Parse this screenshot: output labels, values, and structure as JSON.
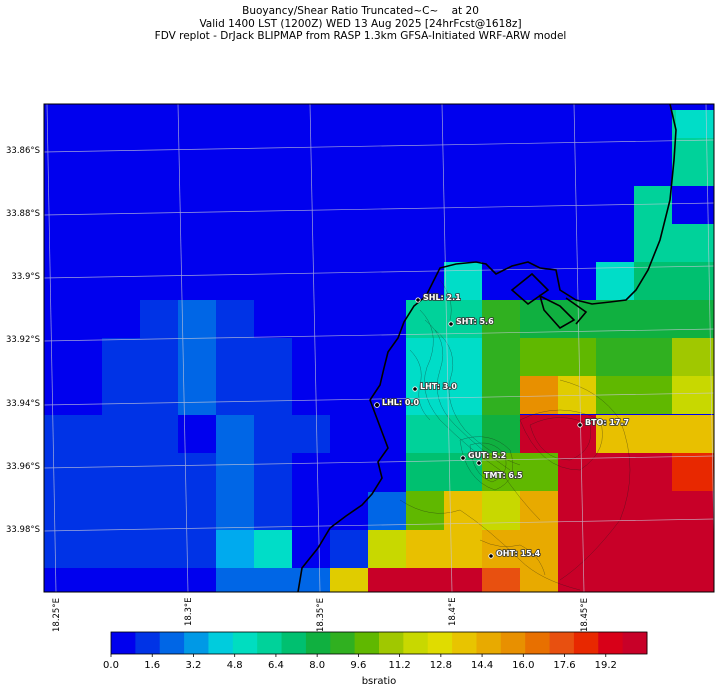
{
  "title": {
    "line1": "Buoyancy/Shear Ratio Truncated~C~    at 20",
    "line2": "Valid 1400 LST (1200Z) WED 13 Aug 2025 [24hrFcst@1618z]",
    "line3": "FDV replot - DrJack BLIPMAP from RASP 1.3km GFSA-Initiated WRF-ARW model"
  },
  "lat_labels": [
    "33.86°S",
    "33.88°S",
    "33.9°S",
    "33.92°S",
    "33.94°S",
    "33.96°S",
    "33.98°S"
  ],
  "lon_labels": [
    "18.25°E",
    "18.3°E",
    "18.35°E",
    "18.4°E",
    "18.45°E"
  ],
  "stations": [
    {
      "id": "SHL",
      "label": "SHL: 2.1",
      "value": 2.1
    },
    {
      "id": "SHT",
      "label": "SHT: 5.6",
      "value": 5.6
    },
    {
      "id": "LHT",
      "label": "LHT: 3.0",
      "value": 3.0
    },
    {
      "id": "LHL",
      "label": "LHL: 0.0",
      "value": 0.0
    },
    {
      "id": "BTO",
      "label": "BTO: 17.7",
      "value": 17.7
    },
    {
      "id": "GUT",
      "label": "GUT: 5.2",
      "value": 5.2
    },
    {
      "id": "TMT",
      "label": "TMT: 6.5",
      "value": 6.5
    },
    {
      "id": "OHT",
      "label": "OHT: 15.4",
      "value": 15.4
    }
  ],
  "colorbar": {
    "title": "bsratio",
    "ticks": [
      "0.0",
      "1.6",
      "3.2",
      "4.8",
      "6.4",
      "8.0",
      "9.6",
      "11.2",
      "12.8",
      "14.4",
      "16.0",
      "17.6",
      "19.2"
    ],
    "min": 0.0,
    "max": 20.8,
    "colors": [
      "#0000ee",
      "#0033e6",
      "#0066e6",
      "#0099e6",
      "#00ccdd",
      "#00ddc0",
      "#00d29a",
      "#00c070",
      "#10b040",
      "#30b020",
      "#60b800",
      "#a0c800",
      "#c8d800",
      "#e0dc00",
      "#e8c400",
      "#e8aa00",
      "#e89000",
      "#e87000",
      "#e85010",
      "#e82800",
      "#d80018",
      "#c80028"
    ]
  }
}
